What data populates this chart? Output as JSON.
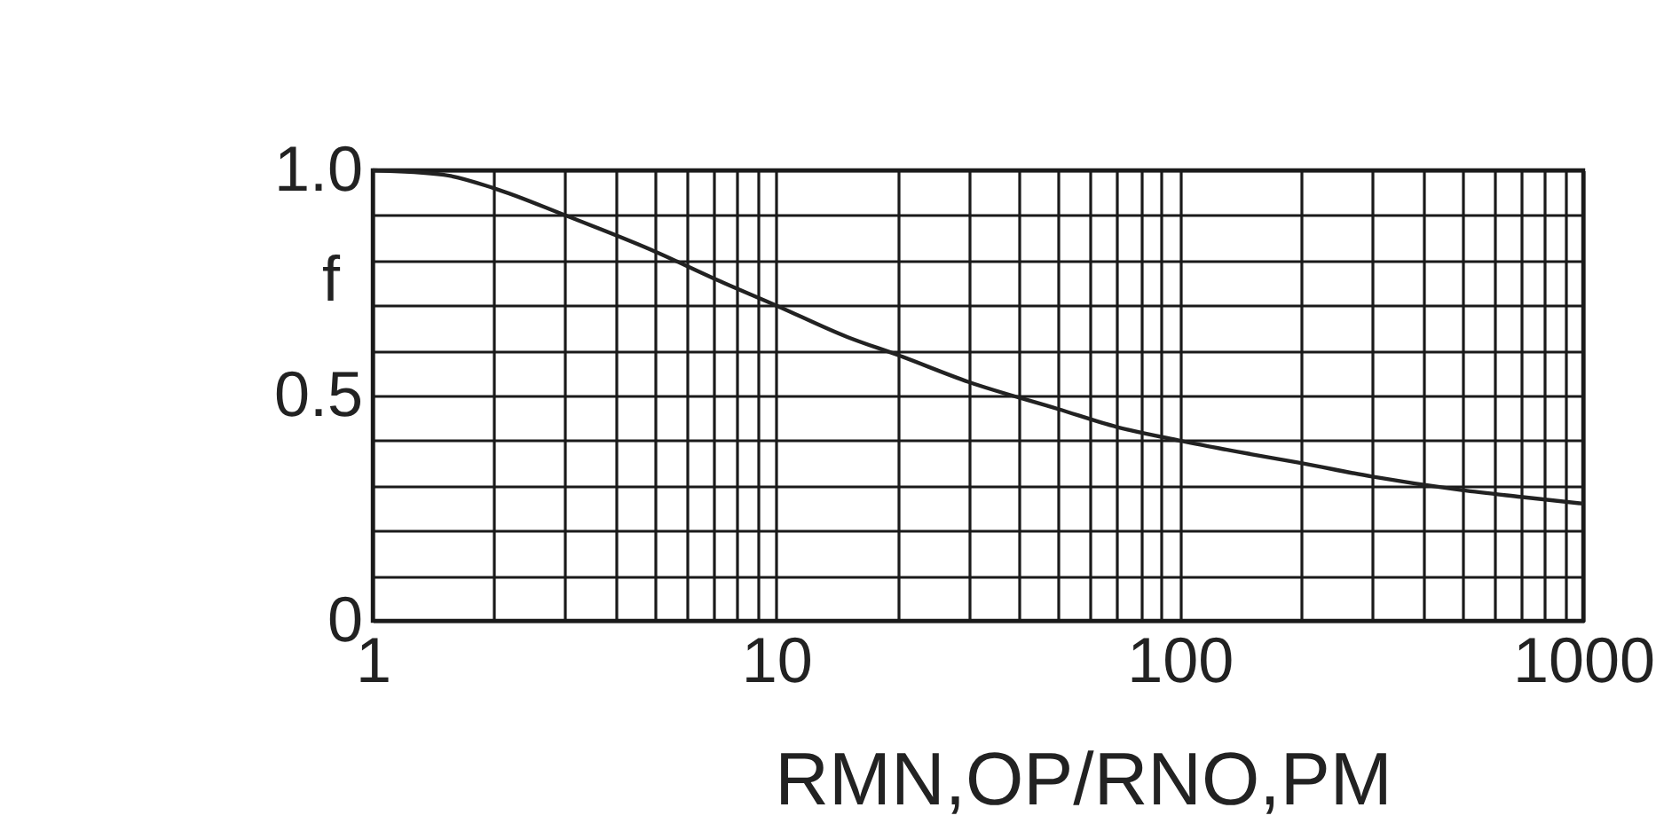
{
  "chart_data": {
    "type": "line",
    "xlabel": "RMN,OP/RNO,PM",
    "ylabel": "f",
    "x": [
      1,
      1.5,
      2,
      3,
      5,
      7,
      10,
      15,
      20,
      30,
      50,
      70,
      100,
      150,
      200,
      300,
      500,
      700,
      1000
    ],
    "series": [
      {
        "color": "#222222",
        "values": [
          1.0,
          0.99,
          0.96,
          0.9,
          0.82,
          0.76,
          0.7,
          0.63,
          0.59,
          0.53,
          0.47,
          0.43,
          0.4,
          0.37,
          0.35,
          0.32,
          0.29,
          0.275,
          0.26
        ]
      }
    ],
    "xlim": [
      1,
      1000
    ],
    "ylim": [
      0,
      1
    ],
    "xticks": [
      1,
      {
        "value": 2,
        "label": null
      },
      {
        "value": 3,
        "label": null
      },
      {
        "value": 4,
        "label": null
      },
      {
        "value": 5,
        "label": null
      },
      {
        "value": 6,
        "label": null
      },
      {
        "value": 7,
        "label": null
      },
      {
        "value": 8,
        "label": null
      },
      {
        "value": 9,
        "label": null
      },
      10,
      {
        "value": 20,
        "label": null
      },
      {
        "value": 30,
        "label": null
      },
      {
        "value": 40,
        "label": null
      },
      {
        "value": 50,
        "label": null
      },
      {
        "value": 60,
        "label": null
      },
      {
        "value": 70,
        "label": null
      },
      {
        "value": 80,
        "label": null
      },
      {
        "value": 90,
        "label": null
      },
      100,
      {
        "value": 200,
        "label": null
      },
      {
        "value": 300,
        "label": null
      },
      {
        "value": 400,
        "label": null
      },
      {
        "value": 500,
        "label": null
      },
      {
        "value": 600,
        "label": null
      },
      {
        "value": 700,
        "label": null
      },
      {
        "value": 800,
        "label": null
      },
      {
        "value": 900,
        "label": null
      },
      1000
    ],
    "yticks": [
      0,
      {
        "value": 0.1,
        "label": null
      },
      {
        "value": 0.2,
        "label": null
      },
      {
        "value": 0.3,
        "label": null
      },
      {
        "value": 0.4,
        "label": null
      },
      0.5,
      {
        "value": 0.6,
        "label": null
      },
      {
        "value": 0.7,
        "label": null
      },
      {
        "value": 0.8,
        "label": null
      },
      {
        "value": 0.9,
        "label": null
      },
      {
        "value": 1,
        "label": "1.0"
      }
    ],
    "log": "x",
    "grid": true,
    "line_style": "solid"
  }
}
